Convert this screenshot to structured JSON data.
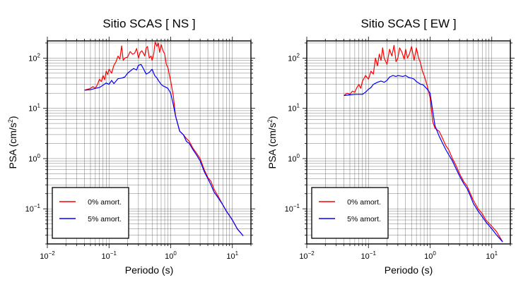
{
  "chart_data": [
    {
      "type": "line",
      "title": "Sitio SCAS [ NS ]",
      "xlabel": "Periodo (s)",
      "ylabel": "PSA (cm/s²)",
      "xscale": "log",
      "yscale": "log",
      "xlim": [
        0.01,
        20
      ],
      "ylim": [
        0.02,
        220
      ],
      "grid": true,
      "legend_position": "bottom-left",
      "xticks": [
        {
          "value": 0.01,
          "base": "10",
          "exp": "−2"
        },
        {
          "value": 0.1,
          "base": "10",
          "exp": "−1"
        },
        {
          "value": 1,
          "base": "10",
          "exp": "0"
        },
        {
          "value": 10,
          "base": "10",
          "exp": "1"
        }
      ],
      "yticks": [
        {
          "value": 0.1,
          "base": "10",
          "exp": "−1"
        },
        {
          "value": 1,
          "base": "10",
          "exp": "0"
        },
        {
          "value": 10,
          "base": "10",
          "exp": "1"
        },
        {
          "value": 100,
          "base": "10",
          "exp": "2"
        }
      ],
      "series": [
        {
          "name": "0% amort.",
          "color": "#ff0000",
          "x": [
            0.04,
            0.045,
            0.05,
            0.055,
            0.06,
            0.065,
            0.07,
            0.075,
            0.08,
            0.085,
            0.09,
            0.095,
            0.1,
            0.11,
            0.12,
            0.13,
            0.14,
            0.15,
            0.16,
            0.17,
            0.18,
            0.2,
            0.22,
            0.24,
            0.26,
            0.28,
            0.3,
            0.32,
            0.34,
            0.36,
            0.38,
            0.4,
            0.42,
            0.45,
            0.48,
            0.5,
            0.53,
            0.56,
            0.6,
            0.63,
            0.66,
            0.7,
            0.75,
            0.8,
            0.85,
            0.9,
            1.0,
            1.1,
            1.2,
            1.4,
            1.6,
            1.8,
            2.0,
            2.3,
            2.6,
            3.0,
            3.5,
            4.0,
            4.5,
            5.0,
            6.0,
            7.0,
            8.0,
            10.0,
            12.0,
            15.0
          ],
          "y": [
            23,
            24,
            25,
            27,
            25,
            30,
            38,
            34,
            45,
            37,
            55,
            47,
            60,
            50,
            72,
            85,
            110,
            95,
            175,
            90,
            100,
            105,
            135,
            120,
            125,
            155,
            100,
            130,
            140,
            125,
            110,
            160,
            170,
            100,
            110,
            90,
            120,
            210,
            170,
            200,
            130,
            185,
            140,
            120,
            75,
            65,
            35,
            18,
            7.0,
            3.5,
            3.0,
            2.5,
            2.2,
            1.6,
            1.3,
            1.0,
            0.6,
            0.42,
            0.35,
            0.25,
            0.17,
            0.12,
            0.09,
            0.06,
            0.04,
            0.029
          ]
        },
        {
          "name": "5% amort.",
          "color": "#0000ff",
          "x": [
            0.04,
            0.05,
            0.06,
            0.07,
            0.08,
            0.09,
            0.1,
            0.11,
            0.12,
            0.14,
            0.16,
            0.18,
            0.2,
            0.22,
            0.25,
            0.28,
            0.3,
            0.33,
            0.36,
            0.4,
            0.45,
            0.5,
            0.55,
            0.6,
            0.65,
            0.7,
            0.75,
            0.8,
            0.9,
            1.0,
            1.1,
            1.2,
            1.4,
            1.6,
            1.8,
            2.0,
            2.3,
            2.6,
            3.0,
            3.5,
            4.0,
            4.5,
            5.0,
            6.0,
            7.0,
            8.0,
            10.0,
            12.0,
            15.0
          ],
          "y": [
            23,
            23.5,
            25,
            26,
            29,
            32,
            30,
            36,
            31,
            39,
            40,
            42,
            50,
            55,
            62,
            58,
            72,
            75,
            62,
            48,
            52,
            60,
            45,
            40,
            34,
            30,
            28,
            27,
            25,
            20,
            12,
            7.0,
            3.5,
            3.0,
            2.2,
            2.0,
            1.5,
            1.2,
            0.9,
            0.55,
            0.4,
            0.3,
            0.22,
            0.16,
            0.12,
            0.09,
            0.06,
            0.04,
            0.029
          ]
        }
      ]
    },
    {
      "type": "line",
      "title": "Sitio SCAS [ EW ]",
      "xlabel": "Periodo (s)",
      "ylabel": "PSA (cm/s²)",
      "xscale": "log",
      "yscale": "log",
      "xlim": [
        0.01,
        20
      ],
      "ylim": [
        0.02,
        220
      ],
      "grid": true,
      "legend_position": "bottom-left",
      "xticks": [
        {
          "value": 0.01,
          "base": "10",
          "exp": "−2"
        },
        {
          "value": 0.1,
          "base": "10",
          "exp": "−1"
        },
        {
          "value": 1,
          "base": "10",
          "exp": "0"
        },
        {
          "value": 10,
          "base": "10",
          "exp": "1"
        }
      ],
      "yticks": [
        {
          "value": 0.1,
          "base": "10",
          "exp": "−1"
        },
        {
          "value": 1,
          "base": "10",
          "exp": "0"
        },
        {
          "value": 10,
          "base": "10",
          "exp": "1"
        },
        {
          "value": 100,
          "base": "10",
          "exp": "2"
        }
      ],
      "series": [
        {
          "name": "0% amort.",
          "color": "#ff0000",
          "x": [
            0.04,
            0.045,
            0.05,
            0.055,
            0.06,
            0.065,
            0.07,
            0.075,
            0.08,
            0.09,
            0.1,
            0.11,
            0.12,
            0.13,
            0.14,
            0.15,
            0.16,
            0.17,
            0.18,
            0.2,
            0.22,
            0.24,
            0.26,
            0.28,
            0.3,
            0.32,
            0.35,
            0.38,
            0.4,
            0.43,
            0.46,
            0.5,
            0.55,
            0.6,
            0.65,
            0.7,
            0.75,
            0.8,
            0.9,
            1.0,
            1.1,
            1.2,
            1.4,
            1.6,
            1.8,
            2.0,
            2.3,
            2.6,
            3.0,
            3.5,
            4.0,
            4.5,
            5.0,
            6.0,
            7.0,
            8.0,
            10.0,
            12.0,
            15.0
          ],
          "y": [
            18,
            20,
            19,
            22,
            21,
            26,
            30,
            25,
            35,
            45,
            38,
            55,
            48,
            100,
            70,
            120,
            90,
            160,
            100,
            75,
            150,
            110,
            180,
            85,
            100,
            160,
            130,
            95,
            150,
            100,
            120,
            170,
            90,
            160,
            100,
            80,
            55,
            45,
            28,
            16,
            5.5,
            4.0,
            3.5,
            2.5,
            1.8,
            1.5,
            1.0,
            0.75,
            0.5,
            0.35,
            0.28,
            0.2,
            0.15,
            0.1,
            0.08,
            0.06,
            0.045,
            0.035,
            0.022
          ]
        },
        {
          "name": "5% amort.",
          "color": "#0000ff",
          "x": [
            0.04,
            0.05,
            0.06,
            0.07,
            0.08,
            0.09,
            0.1,
            0.11,
            0.12,
            0.14,
            0.16,
            0.18,
            0.2,
            0.22,
            0.25,
            0.28,
            0.3,
            0.33,
            0.36,
            0.4,
            0.45,
            0.5,
            0.55,
            0.6,
            0.65,
            0.7,
            0.75,
            0.8,
            0.9,
            1.0,
            1.1,
            1.2,
            1.4,
            1.6,
            1.8,
            2.0,
            2.3,
            2.6,
            3.0,
            3.5,
            4.0,
            4.5,
            5.0,
            6.0,
            7.0,
            8.0,
            10.0,
            12.0,
            15.0
          ],
          "y": [
            18,
            18.5,
            19,
            19,
            19,
            21,
            24,
            26,
            30,
            33,
            35,
            33,
            36,
            42,
            45,
            43,
            45,
            44,
            43,
            45,
            41,
            40,
            38,
            34,
            32,
            30,
            30,
            28,
            24,
            20,
            9,
            4.5,
            2.8,
            2.0,
            1.5,
            1.2,
            0.9,
            0.65,
            0.45,
            0.32,
            0.25,
            0.18,
            0.13,
            0.09,
            0.07,
            0.055,
            0.04,
            0.03,
            0.022
          ]
        }
      ]
    }
  ]
}
